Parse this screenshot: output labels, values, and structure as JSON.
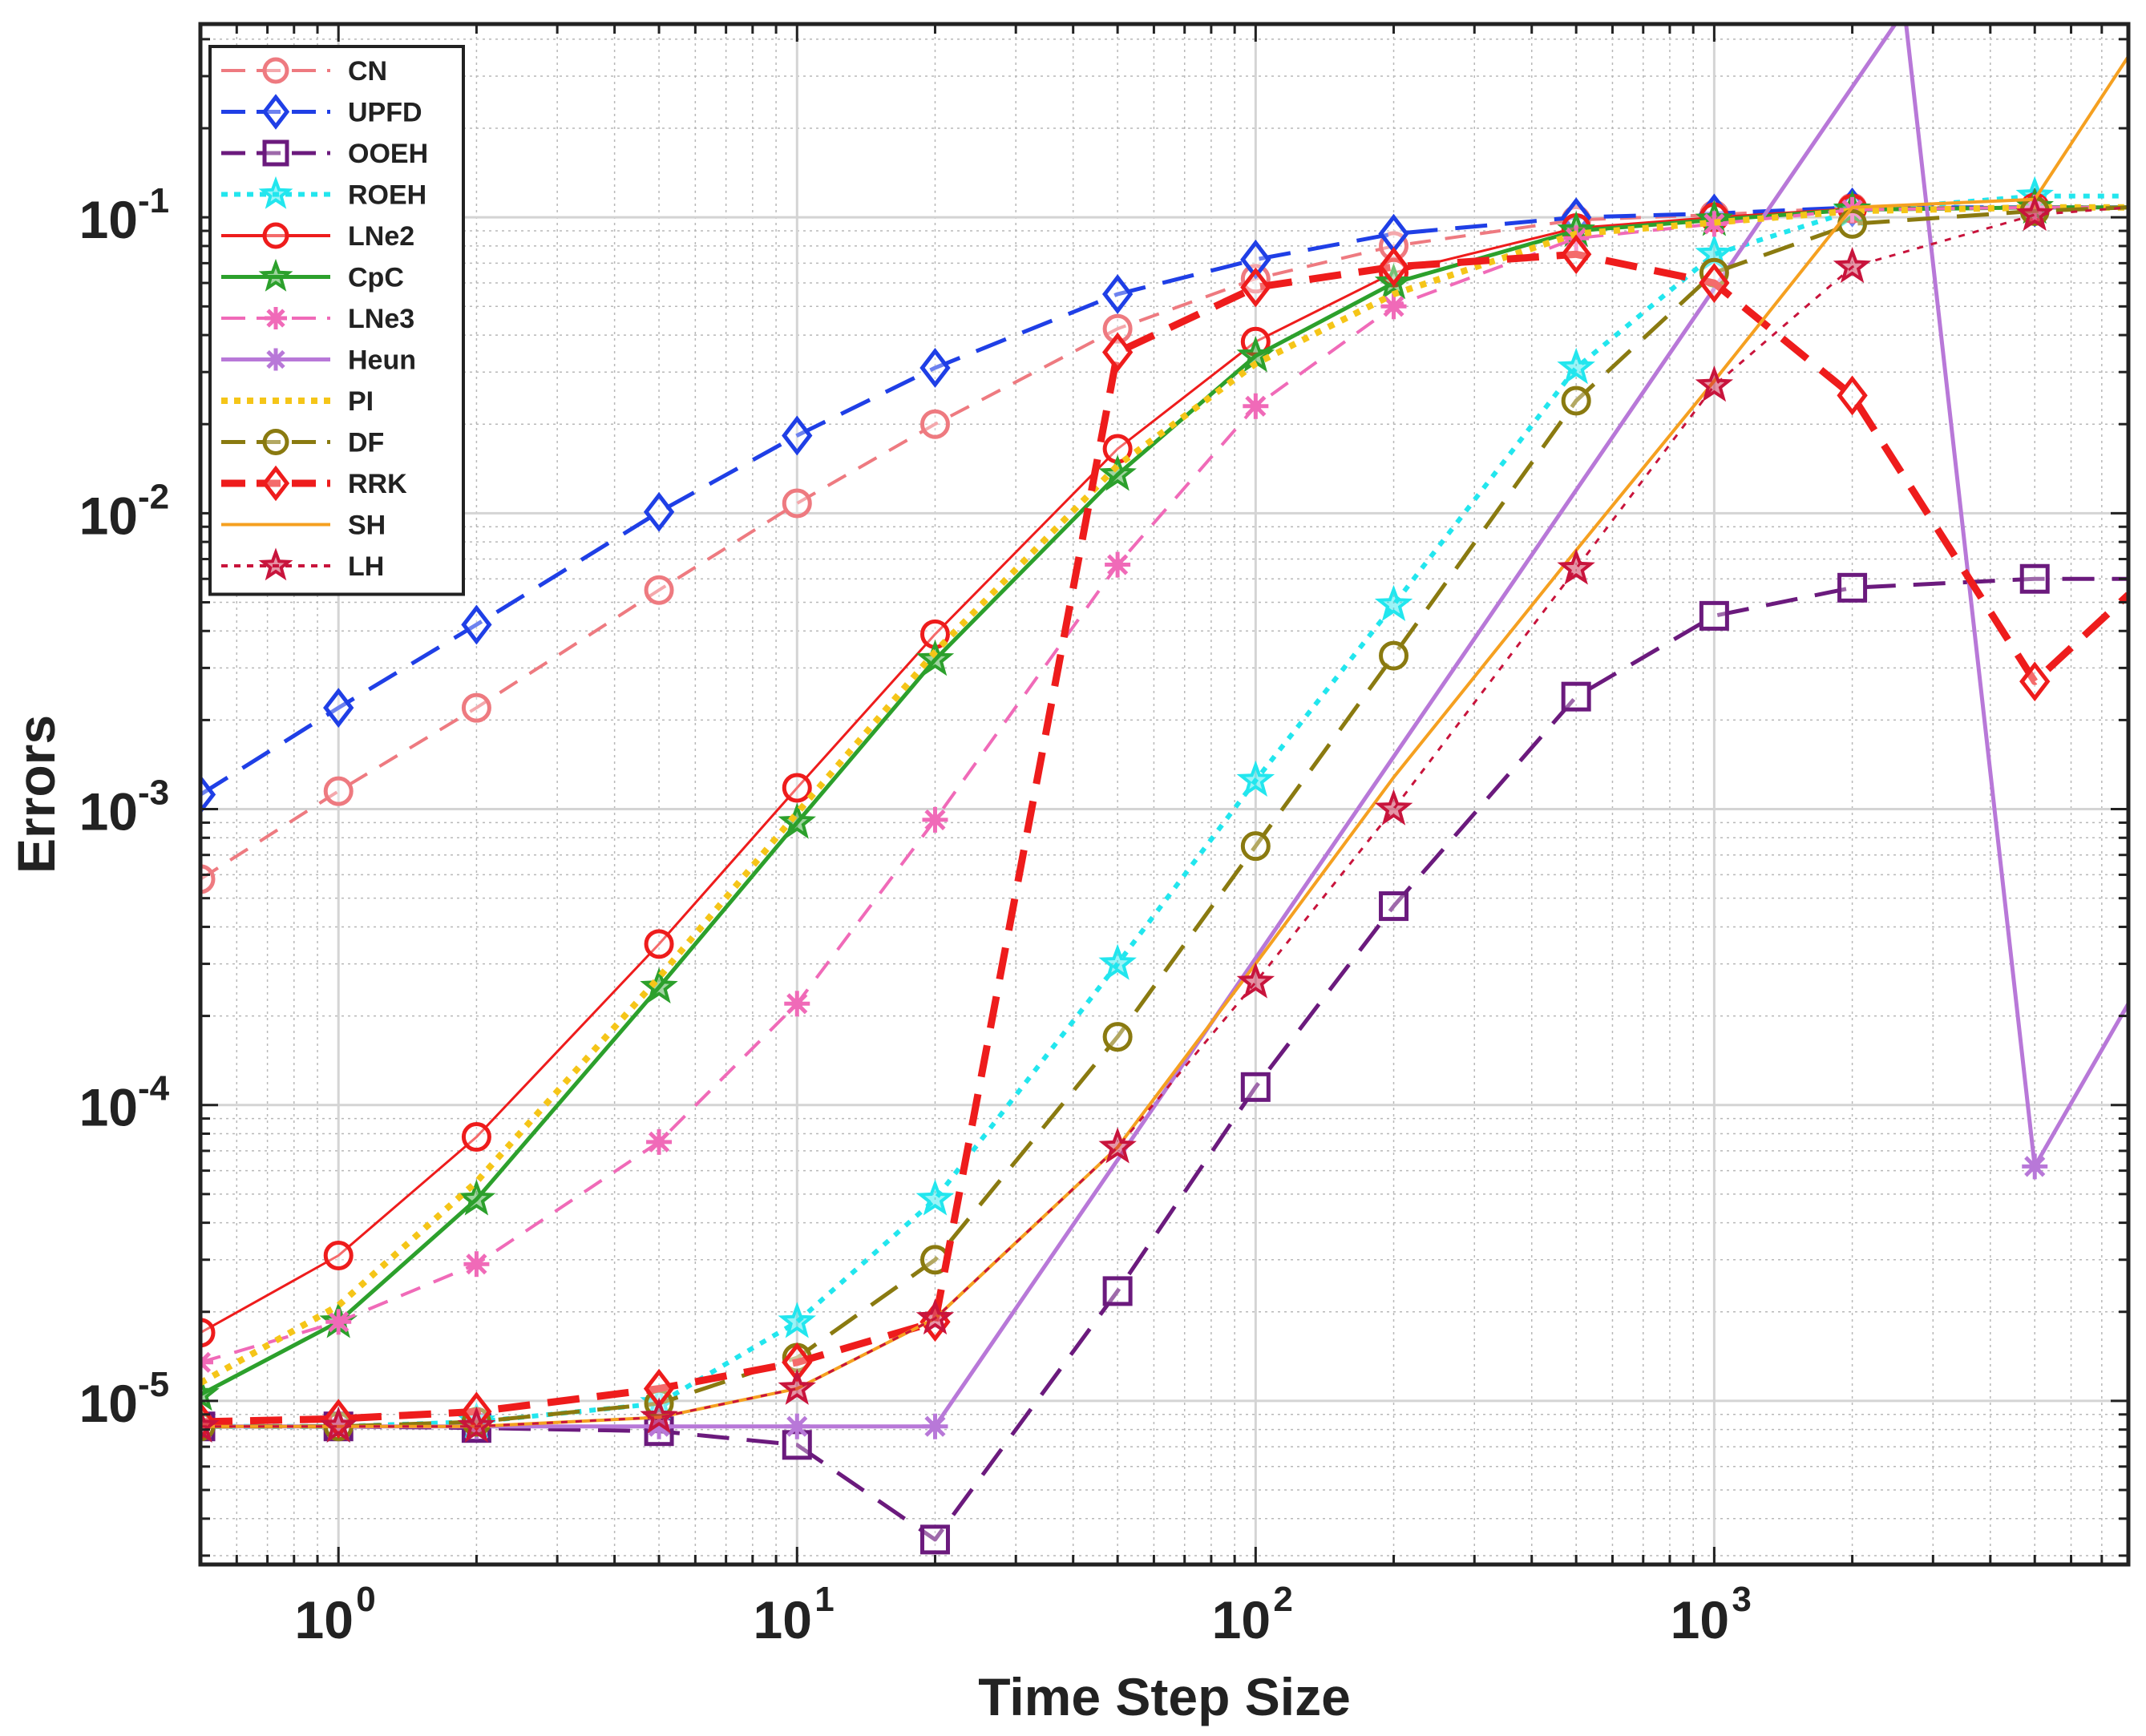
{
  "chart_data": {
    "type": "line",
    "title": "",
    "xlabel": "Time Step Size",
    "ylabel": "Errors",
    "xscale": "log",
    "yscale": "log",
    "xlim": [
      0.5,
      8000
    ],
    "ylim": [
      2.8e-06,
      0.45
    ],
    "grid": true,
    "legend_position": "top-left",
    "x_ticks": [
      {
        "base": "10",
        "exp": "0",
        "value": 1
      },
      {
        "base": "10",
        "exp": "1",
        "value": 10
      },
      {
        "base": "10",
        "exp": "2",
        "value": 100
      },
      {
        "base": "10",
        "exp": "3",
        "value": 1000
      }
    ],
    "y_ticks": [
      {
        "base": "10",
        "exp": "-5",
        "value": 1e-05
      },
      {
        "base": "10",
        "exp": "-4",
        "value": 0.0001
      },
      {
        "base": "10",
        "exp": "-3",
        "value": 0.001
      },
      {
        "base": "10",
        "exp": "-2",
        "value": 0.01
      },
      {
        "base": "10",
        "exp": "-1",
        "value": 0.1
      }
    ],
    "series": [
      {
        "name": "CN",
        "color": "#ee7a80",
        "dash": "dash",
        "width": 4,
        "marker": "circle",
        "x": [
          0.5,
          1,
          2,
          5,
          10,
          20,
          50,
          100,
          200,
          500,
          1000,
          2000,
          5000,
          8000
        ],
        "y": [
          0.00058,
          0.00115,
          0.0022,
          0.0055,
          0.0108,
          0.02,
          0.042,
          0.062,
          0.08,
          0.098,
          0.102,
          0.108,
          0.108,
          0.108
        ]
      },
      {
        "name": "UPFD",
        "color": "#1f3fe6",
        "dash": "longdash",
        "width": 5,
        "marker": "diamond",
        "x": [
          0.5,
          1,
          2,
          5,
          10,
          20,
          50,
          100,
          200,
          500,
          1000,
          2000,
          5000,
          8000
        ],
        "y": [
          0.00112,
          0.0022,
          0.0042,
          0.0101,
          0.0183,
          0.031,
          0.055,
          0.072,
          0.088,
          0.1,
          0.103,
          0.108,
          0.108,
          0.108
        ]
      },
      {
        "name": "OOEH",
        "color": "#6b1a7d",
        "dash": "longdash",
        "width": 5,
        "marker": "square",
        "x": [
          0.5,
          1,
          2,
          5,
          10,
          20,
          50,
          100,
          200,
          500,
          1000,
          2000,
          5000,
          8000
        ],
        "y": [
          8.2e-06,
          8.2e-06,
          8.1e-06,
          7.9e-06,
          7.1e-06,
          3.4e-06,
          2.35e-05,
          0.000115,
          0.00047,
          0.0024,
          0.0045,
          0.0056,
          0.006,
          0.006
        ]
      },
      {
        "name": "ROEH",
        "color": "#22e6ee",
        "dash": "dot",
        "width": 6,
        "marker": "star",
        "x": [
          0.5,
          1,
          2,
          5,
          10,
          20,
          50,
          100,
          200,
          500,
          1000,
          2000,
          5000,
          8000
        ],
        "y": [
          8.2e-06,
          8.2e-06,
          8.5e-06,
          9.8e-06,
          1.85e-05,
          4.8e-05,
          0.0003,
          0.00125,
          0.0049,
          0.031,
          0.075,
          0.105,
          0.118,
          0.118
        ]
      },
      {
        "name": "LNe2",
        "color": "#ee1c1c",
        "dash": "solid",
        "width": 3,
        "marker": "circle",
        "x": [
          0.5,
          1,
          2,
          5,
          10,
          20,
          50,
          100,
          200,
          500,
          1000,
          2000,
          5000,
          8000
        ],
        "y": [
          1.7e-05,
          3.1e-05,
          7.8e-05,
          0.00035,
          0.00118,
          0.0039,
          0.0165,
          0.038,
          0.065,
          0.092,
          0.1,
          0.107,
          0.108,
          0.108
        ]
      },
      {
        "name": "CpC",
        "color": "#2ca02c",
        "dash": "solid",
        "width": 5,
        "marker": "star",
        "x": [
          0.5,
          1,
          2,
          5,
          10,
          20,
          50,
          100,
          200,
          500,
          1000,
          2000,
          5000,
          8000
        ],
        "y": [
          1.05e-05,
          1.85e-05,
          4.8e-05,
          0.00025,
          0.0009,
          0.0032,
          0.0135,
          0.034,
          0.06,
          0.09,
          0.098,
          0.106,
          0.108,
          0.108
        ]
      },
      {
        "name": "LNe3",
        "color": "#f06ab8",
        "dash": "dash",
        "width": 4,
        "marker": "asterisk",
        "x": [
          0.5,
          1,
          2,
          5,
          10,
          20,
          50,
          100,
          200,
          500,
          1000,
          2000,
          5000,
          8000
        ],
        "y": [
          1.35e-05,
          1.85e-05,
          2.9e-05,
          7.5e-05,
          0.00022,
          0.00092,
          0.0067,
          0.023,
          0.05,
          0.085,
          0.095,
          0.106,
          0.108,
          0.108
        ]
      },
      {
        "name": "Heun",
        "color": "#b878d8",
        "dash": "solid",
        "width": 5,
        "marker": "asterisk",
        "x": [
          0.5,
          1,
          2,
          5,
          10,
          20,
          2600,
          5000,
          8000
        ],
        "y": [
          8.2e-06,
          8.2e-06,
          8.2e-06,
          8.2e-06,
          8.2e-06,
          8.2e-06,
          0.5,
          6.2e-05,
          0.00022
        ]
      },
      {
        "name": "PI",
        "color": "#f5c518",
        "dash": "dot",
        "width": 8,
        "marker": "none",
        "x": [
          0.5,
          1,
          2,
          5,
          10,
          20,
          50,
          100,
          200,
          500,
          1000,
          2000,
          5000,
          8000
        ],
        "y": [
          1.15e-05,
          2.1e-05,
          5.5e-05,
          0.00027,
          0.00097,
          0.0034,
          0.0145,
          0.032,
          0.055,
          0.088,
          0.096,
          0.105,
          0.108,
          0.108
        ]
      },
      {
        "name": "DF",
        "color": "#8a7a10",
        "dash": "longdash",
        "width": 5,
        "marker": "circle",
        "x": [
          0.5,
          1,
          2,
          5,
          10,
          20,
          50,
          100,
          200,
          500,
          1000,
          2000,
          5000,
          8000
        ],
        "y": [
          8.2e-06,
          8.2e-06,
          8.5e-06,
          9.8e-06,
          1.4e-05,
          3e-05,
          0.00017,
          0.00075,
          0.0033,
          0.024,
          0.065,
          0.095,
          0.105,
          0.108
        ]
      },
      {
        "name": "RRK",
        "color": "#ee1c1c",
        "dash": "longdash",
        "width": 9,
        "marker": "diamond",
        "x": [
          0.5,
          1,
          2,
          5,
          10,
          20,
          50,
          100,
          200,
          500,
          1000,
          2000,
          5000,
          8000
        ],
        "y": [
          8.5e-06,
          8.7e-06,
          9.2e-06,
          1.1e-05,
          1.35e-05,
          1.85e-05,
          0.035,
          0.058,
          0.068,
          0.075,
          0.06,
          0.025,
          0.0027,
          0.0053
        ]
      },
      {
        "name": "SH",
        "color": "#f5a020",
        "dash": "solid",
        "width": 4,
        "marker": "none",
        "x": [
          0.5,
          1,
          2,
          5,
          10,
          20,
          50,
          100,
          200,
          500,
          1000,
          2000,
          5000,
          8000
        ],
        "y": [
          8.2e-06,
          8.2e-06,
          8.2e-06,
          8.8e-06,
          1.1e-05,
          1.9e-05,
          7.2e-05,
          0.0003,
          0.00128,
          0.0075,
          0.028,
          0.108,
          0.115,
          0.35
        ]
      },
      {
        "name": "LH",
        "color": "#c8143c",
        "dash": "dot",
        "width": 3,
        "marker": "star",
        "x": [
          0.5,
          1,
          2,
          5,
          10,
          20,
          50,
          100,
          200,
          500,
          1000,
          2000,
          5000,
          8000
        ],
        "y": [
          8.2e-06,
          8.2e-06,
          8.2e-06,
          8.8e-06,
          1.1e-05,
          1.9e-05,
          7.2e-05,
          0.00026,
          0.001,
          0.0065,
          0.027,
          0.068,
          0.102,
          0.108
        ]
      }
    ]
  }
}
